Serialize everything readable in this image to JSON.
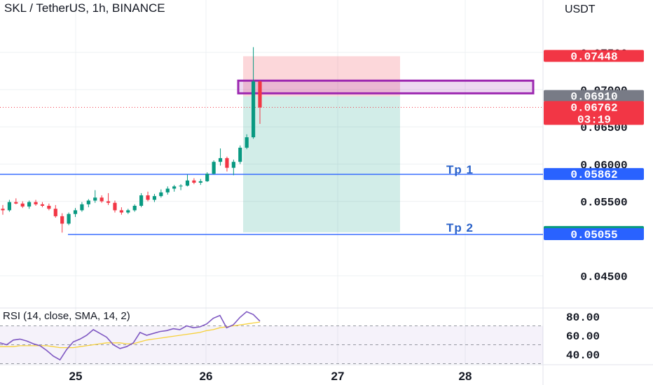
{
  "header": {
    "symbol_title": "SKL / TetherUS, 1h, BINANCE",
    "currency": "USDT"
  },
  "price_axis": {
    "ticks": [
      {
        "label": "0.07500",
        "value": 0.075
      },
      {
        "label": "0.07000",
        "value": 0.07
      },
      {
        "label": "0.06500",
        "value": 0.065
      },
      {
        "label": "0.06000",
        "value": 0.06
      },
      {
        "label": "0.05500",
        "value": 0.055
      },
      {
        "label": "0.04500",
        "value": 0.045
      }
    ],
    "badges": [
      {
        "label": "0.07448",
        "value": 0.07448,
        "color": "#f23645"
      },
      {
        "label": "0.06910",
        "value": 0.0691,
        "color": "#787b86"
      },
      {
        "label": "0.06762",
        "sub": "03:19",
        "value": 0.06762,
        "color": "#f23645"
      },
      {
        "label": "0.05862",
        "value": 0.05862,
        "color": "#2962ff"
      },
      {
        "label": "0.05084",
        "value": 0.05084,
        "color": "#089981"
      },
      {
        "label": "0.05055",
        "value": 0.05055,
        "color": "#2962ff"
      }
    ]
  },
  "time_axis": {
    "labels": [
      "25",
      "26",
      "27",
      "28"
    ]
  },
  "annotations": {
    "tp1": "Tp  1",
    "tp2": "Tp  2"
  },
  "rsi": {
    "title": "RSI (14, close, SMA, 14, 2)",
    "ticks": [
      "80.00",
      "60.00",
      "40.00"
    ],
    "levels": [
      80,
      60,
      40
    ]
  },
  "colors": {
    "up": "#089981",
    "down": "#f23645",
    "line_blue": "#2962ff",
    "rsi_line": "#7e57c2",
    "rsi_ma": "#f7d13b",
    "purple_box": "#9c27b0"
  },
  "chart_data": {
    "type": "candlestick",
    "timeframe": "1h",
    "current_price": 0.06762,
    "countdown": "03:19",
    "levels": {
      "tp1": 0.05862,
      "tp2": 0.05055,
      "entry_zone_top": 0.0712,
      "entry_zone_bottom": 0.0695
    },
    "position": {
      "stop": 0.07448,
      "entry": 0.0691,
      "target": 0.05084
    },
    "candles": [
      [
        0.054,
        0.0545,
        0.0532,
        0.0538
      ],
      [
        0.0538,
        0.0552,
        0.0536,
        0.0549
      ],
      [
        0.0549,
        0.0554,
        0.0546,
        0.0547
      ],
      [
        0.0547,
        0.055,
        0.0541,
        0.0543
      ],
      [
        0.0543,
        0.0551,
        0.054,
        0.0549
      ],
      [
        0.0549,
        0.0552,
        0.0544,
        0.0546
      ],
      [
        0.0546,
        0.0549,
        0.0542,
        0.0544
      ],
      [
        0.0544,
        0.0547,
        0.0538,
        0.054
      ],
      [
        0.054,
        0.0545,
        0.0528,
        0.053
      ],
      [
        0.053,
        0.0534,
        0.0508,
        0.052
      ],
      [
        0.052,
        0.0535,
        0.0518,
        0.0533
      ],
      [
        0.0533,
        0.0541,
        0.0529,
        0.0538
      ],
      [
        0.0538,
        0.0549,
        0.0536,
        0.0546
      ],
      [
        0.0546,
        0.0553,
        0.0542,
        0.0551
      ],
      [
        0.0551,
        0.0565,
        0.0548,
        0.0555
      ],
      [
        0.0555,
        0.0558,
        0.0548,
        0.055
      ],
      [
        0.055,
        0.0561,
        0.0545,
        0.0548
      ],
      [
        0.0548,
        0.0551,
        0.0535,
        0.0538
      ],
      [
        0.0538,
        0.0542,
        0.0532,
        0.0535
      ],
      [
        0.0535,
        0.054,
        0.0533,
        0.0538
      ],
      [
        0.0538,
        0.0546,
        0.0536,
        0.0544
      ],
      [
        0.0544,
        0.0561,
        0.0542,
        0.0558
      ],
      [
        0.0558,
        0.0563,
        0.055,
        0.0552
      ],
      [
        0.0552,
        0.056,
        0.0549,
        0.0557
      ],
      [
        0.0557,
        0.0566,
        0.0555,
        0.0562
      ],
      [
        0.0562,
        0.057,
        0.0559,
        0.0567
      ],
      [
        0.0567,
        0.0572,
        0.0563,
        0.057
      ],
      [
        0.057,
        0.0573,
        0.0565,
        0.0571
      ],
      [
        0.0571,
        0.0586,
        0.057,
        0.0578
      ],
      [
        0.0578,
        0.0581,
        0.0573,
        0.0575
      ],
      [
        0.0575,
        0.058,
        0.0572,
        0.0577
      ],
      [
        0.0577,
        0.0589,
        0.0576,
        0.0587
      ],
      [
        0.0587,
        0.0605,
        0.0586,
        0.0603
      ],
      [
        0.0603,
        0.0621,
        0.0598,
        0.0608
      ],
      [
        0.0608,
        0.061,
        0.059,
        0.0595
      ],
      [
        0.0595,
        0.0606,
        0.0585,
        0.0603
      ],
      [
        0.0603,
        0.0625,
        0.06,
        0.0622
      ],
      [
        0.0622,
        0.064,
        0.062,
        0.0636
      ],
      [
        0.0636,
        0.0757,
        0.0634,
        0.0711
      ],
      [
        0.0711,
        0.0712,
        0.0654,
        0.0676
      ]
    ],
    "rsi": [
      52,
      50,
      55,
      56,
      54,
      51,
      49,
      44,
      38,
      34,
      45,
      53,
      56,
      60,
      66,
      62,
      58,
      50,
      46,
      48,
      52,
      63,
      60,
      62,
      64,
      65,
      67,
      66,
      70,
      68,
      69,
      72,
      78,
      81,
      68,
      71,
      79,
      85,
      82,
      75
    ],
    "rsi_ma": [
      48,
      48,
      48,
      49,
      49,
      49,
      49,
      49,
      48,
      47,
      47,
      47,
      48,
      49,
      50,
      51,
      52,
      52,
      52,
      51,
      51,
      53,
      55,
      56,
      57,
      58,
      59,
      60,
      61,
      62,
      63,
      65,
      66,
      68,
      69,
      70,
      71,
      72,
      73,
      74
    ]
  }
}
